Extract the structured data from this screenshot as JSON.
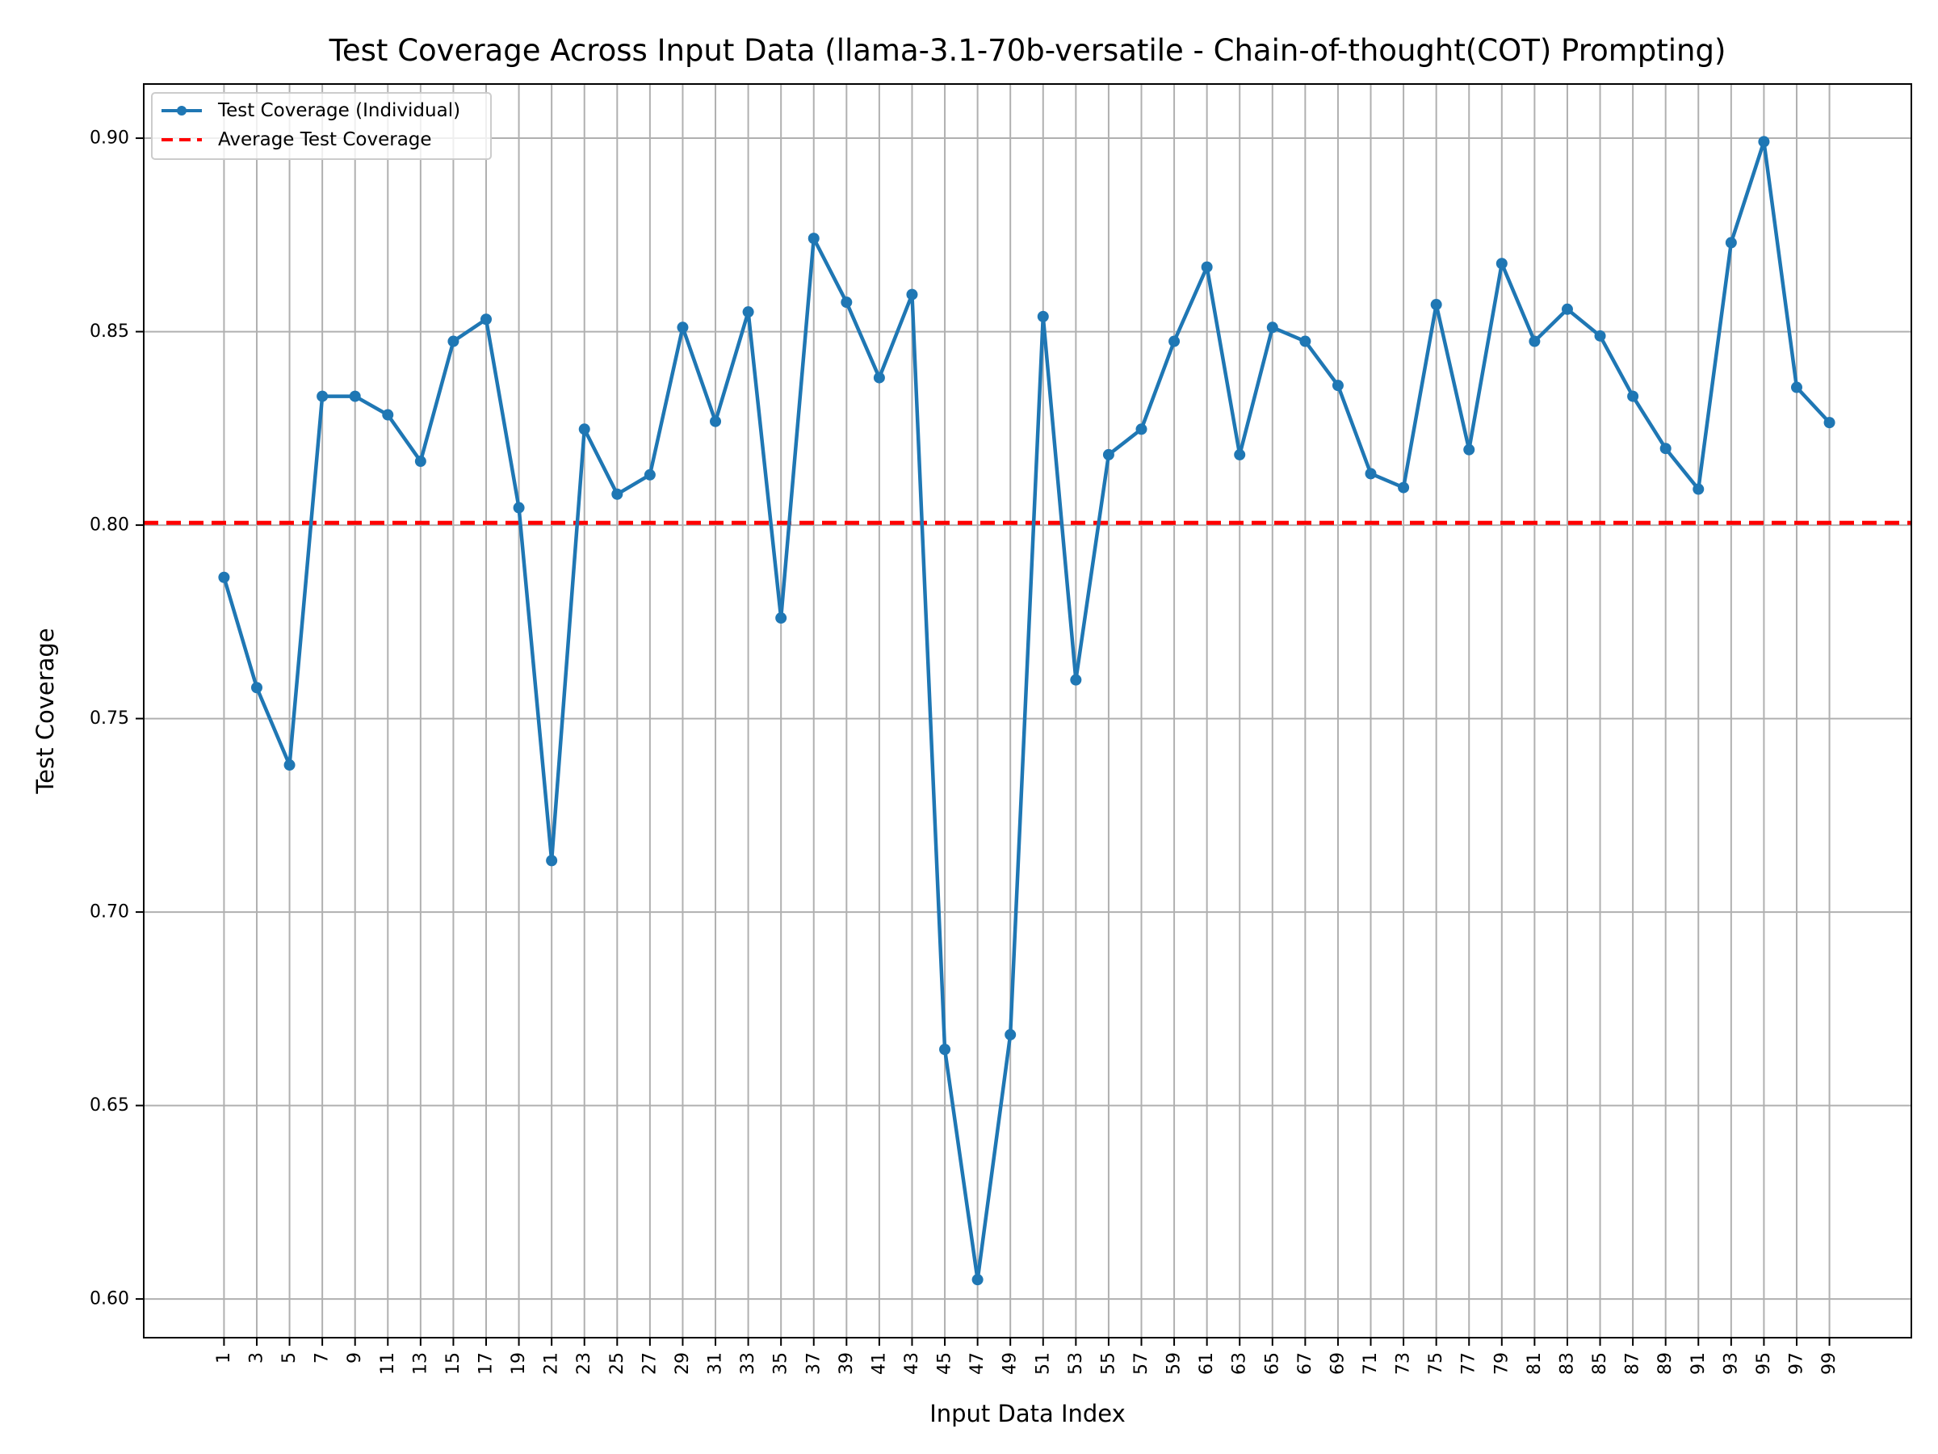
{
  "chart_data": {
    "type": "line",
    "title": "Test Coverage Across Input Data (llama-3.1-70b-versatile - Chain-of-thought(COT) Prompting)",
    "xlabel": "Input Data Index",
    "ylabel": "Test Coverage",
    "x": [
      1,
      3,
      5,
      7,
      9,
      11,
      13,
      15,
      17,
      19,
      21,
      23,
      25,
      27,
      29,
      31,
      33,
      35,
      37,
      39,
      41,
      43,
      45,
      47,
      49,
      51,
      53,
      55,
      57,
      59,
      61,
      63,
      65,
      67,
      69,
      71,
      73,
      75,
      77,
      79,
      81,
      83,
      85,
      87,
      89,
      91,
      93,
      95,
      97,
      99
    ],
    "x_tick_labels": [
      "1",
      "3",
      "5",
      "7",
      "9",
      "11",
      "13",
      "15",
      "17",
      "19",
      "21",
      "23",
      "25",
      "27",
      "29",
      "31",
      "33",
      "35",
      "37",
      "39",
      "41",
      "43",
      "45",
      "47",
      "49",
      "51",
      "53",
      "55",
      "57",
      "59",
      "61",
      "63",
      "65",
      "67",
      "69",
      "71",
      "73",
      "75",
      "77",
      "79",
      "81",
      "83",
      "85",
      "87",
      "89",
      "91",
      "93",
      "95",
      "97",
      "99"
    ],
    "xlim": [
      -3.9,
      104
    ],
    "ylim": [
      0.59,
      0.914
    ],
    "y_ticks": [
      0.6,
      0.65,
      0.7,
      0.75,
      0.8,
      0.85,
      0.9
    ],
    "y_tick_labels": [
      "0.60",
      "0.65",
      "0.70",
      "0.75",
      "0.80",
      "0.85",
      "0.90"
    ],
    "grid": true,
    "legend_position": "top-left",
    "series": [
      {
        "name": "Test Coverage (Individual)",
        "color": "#1f77b4",
        "style": "solid-with-markers",
        "values": [
          0.7865,
          0.758,
          0.738,
          0.8333,
          0.8333,
          0.8285,
          0.8165,
          0.8475,
          0.8532,
          0.8045,
          0.7133,
          0.8248,
          0.808,
          0.813,
          0.8511,
          0.8268,
          0.8551,
          0.776,
          0.8741,
          0.8576,
          0.8381,
          0.8596,
          0.6645,
          0.605,
          0.6683,
          0.8539,
          0.76,
          0.8182,
          0.8248,
          0.8475,
          0.8667,
          0.8182,
          0.8511,
          0.8475,
          0.8361,
          0.8133,
          0.8097,
          0.857,
          0.8195,
          0.8676,
          0.8475,
          0.8558,
          0.8489,
          0.8333,
          0.8198,
          0.8093,
          0.873,
          0.8991,
          0.8356,
          0.8265
        ]
      },
      {
        "name": "Average Test Coverage",
        "color": "#ff0000",
        "style": "dashed",
        "constant": 0.8006
      }
    ]
  }
}
